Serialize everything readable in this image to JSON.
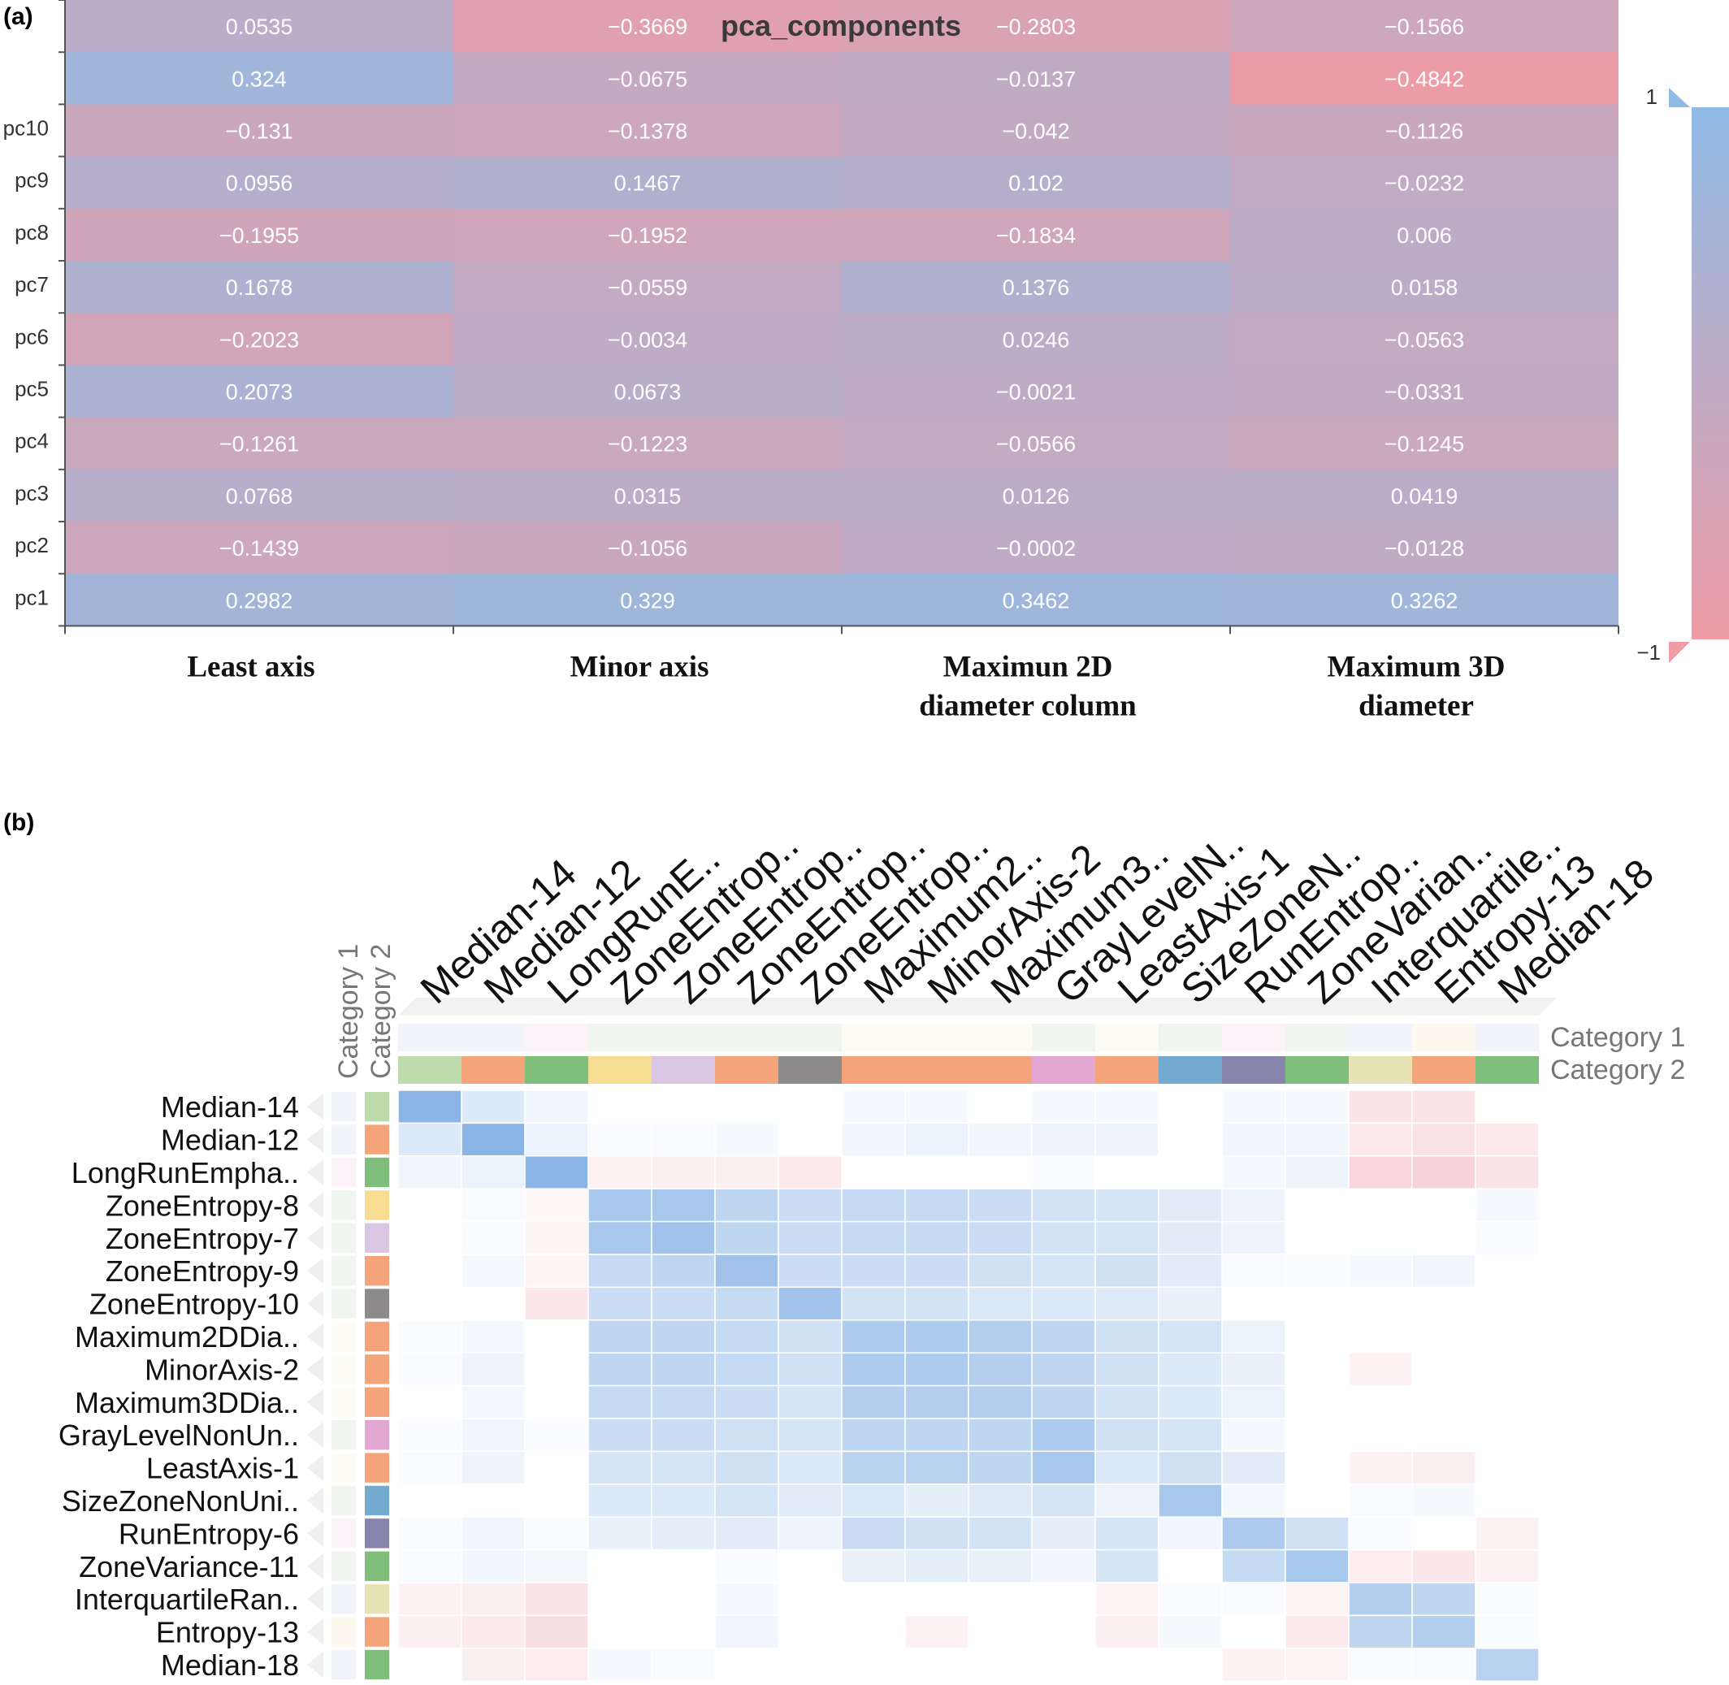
{
  "panel_a_label": "(a)",
  "panel_b_label": "(b)",
  "chart_data": [
    {
      "type": "heatmap",
      "title": "pca_components",
      "columns": [
        "Least axis",
        "Minor axis",
        "Maximun 2D diameter column",
        "Maximum 3D diameter"
      ],
      "columns_display": [
        [
          "Least axis"
        ],
        [
          "Minor axis"
        ],
        [
          "Maximun 2D",
          "diameter column"
        ],
        [
          "Maximum 3D",
          "diameter"
        ]
      ],
      "rows": [
        "",
        "",
        "pc10",
        "pc9",
        "pc8",
        "pc7",
        "pc6",
        "pc5",
        "pc4",
        "pc3",
        "pc2",
        "pc1"
      ],
      "values": [
        [
          0.0535,
          -0.3669,
          -0.2803,
          -0.1566
        ],
        [
          0.324,
          -0.0675,
          -0.0137,
          -0.4842
        ],
        [
          -0.131,
          -0.1378,
          -0.042,
          -0.1126
        ],
        [
          0.0956,
          0.1467,
          0.102,
          -0.0232
        ],
        [
          -0.1955,
          -0.1952,
          -0.1834,
          0.006
        ],
        [
          0.1678,
          -0.0559,
          0.1376,
          0.0158
        ],
        [
          -0.2023,
          -0.0034,
          0.0246,
          -0.0563
        ],
        [
          0.2073,
          0.0673,
          -0.0021,
          -0.0331
        ],
        [
          -0.1261,
          -0.1223,
          -0.0566,
          -0.1245
        ],
        [
          0.0768,
          0.0315,
          0.0126,
          0.0419
        ],
        [
          -0.1439,
          -0.1056,
          -0.0002,
          -0.0128
        ],
        [
          0.2982,
          0.329,
          0.3462,
          0.3262
        ]
      ],
      "visual_map": {
        "min": -1,
        "max": 1,
        "min_label": "−1",
        "max_label": "1",
        "low_color": "#ee9ca6",
        "high_color": "#8fbbe6"
      }
    },
    {
      "type": "heatmap",
      "labels": [
        "Median-14",
        "Median-12",
        "LongRunEmpha..",
        "ZoneEntropy-8",
        "ZoneEntropy-7",
        "ZoneEntropy-9",
        "ZoneEntropy-10",
        "Maximum2DDia..",
        "MinorAxis-2",
        "Maximum3DDia..",
        "GrayLevelNonUn..",
        "LeastAxis-1",
        "SizeZoneNonUni..",
        "RunEntropy-6",
        "ZoneVariance-11",
        "InterquartileRan..",
        "Entropy-13",
        "Median-18"
      ],
      "column_labels": [
        "Median-14",
        "Median-12",
        "LongRunE..",
        "ZoneEntrop..",
        "ZoneEntrop..",
        "ZoneEntrop..",
        "ZoneEntrop..",
        "Maximum2..",
        "MinorAxis-2",
        "Maximum3..",
        "GrayLevelN..",
        "LeastAxis-1",
        "SizeZoneN..",
        "RunEntrop..",
        "ZoneVarian..",
        "Interquartile..",
        "Entropy-13",
        "Median-18"
      ],
      "category_labels": [
        "Category 1",
        "Category 2"
      ],
      "category1_colors": [
        "#f1f5fa",
        "#f1f5fa",
        "#fcf2f8",
        "#f0f6ef",
        "#f0f6ef",
        "#f0f6ef",
        "#f0f6ef",
        "#fcfcf2",
        "#fcfcf2",
        "#fcfcf2",
        "#f0f6ef",
        "#fcfcf2",
        "#f0f6ef",
        "#fcf2f8",
        "#f0f6ef",
        "#f1f5fa",
        "#fff8ee",
        "#f1f5fa"
      ],
      "category2_colors": [
        "#bedcab",
        "#f4a47a",
        "#7fbe7b",
        "#f7dd92",
        "#d9c6e2",
        "#f4a47a",
        "#8c8a8b",
        "#f4a47a",
        "#f4a47a",
        "#f4a47a",
        "#e2a6d2",
        "#f4a47a",
        "#74a9d0",
        "#8684ad",
        "#7fbe7b",
        "#e6e4b5",
        "#f4a47a",
        "#7fbe7b"
      ],
      "values": [
        [
          1.0,
          0.3,
          0.12,
          0,
          0,
          0,
          0,
          0.08,
          0.08,
          0,
          0.08,
          0.08,
          0,
          0.08,
          0.08,
          -0.2,
          -0.2,
          0
        ],
        [
          0.3,
          1.0,
          0.18,
          0.05,
          0.05,
          0.08,
          0,
          0.12,
          0.18,
          0.12,
          0.16,
          0.16,
          0,
          0.12,
          0.12,
          -0.16,
          -0.22,
          -0.16
        ],
        [
          0.12,
          0.18,
          1.0,
          -0.1,
          -0.12,
          -0.12,
          -0.16,
          0,
          0,
          0,
          0.05,
          0,
          0,
          0.08,
          0.16,
          -0.3,
          -0.32,
          -0.2
        ],
        [
          0,
          0.05,
          -0.05,
          0.75,
          0.75,
          0.55,
          0.45,
          0.5,
          0.5,
          0.45,
          0.38,
          0.35,
          0.25,
          0.15,
          0,
          0,
          0,
          0.08
        ],
        [
          0,
          0.05,
          -0.08,
          0.75,
          0.8,
          0.55,
          0.45,
          0.5,
          0.5,
          0.45,
          0.38,
          0.35,
          0.25,
          0.15,
          0,
          0,
          0,
          0.05
        ],
        [
          0,
          0.1,
          -0.08,
          0.5,
          0.55,
          0.8,
          0.45,
          0.45,
          0.45,
          0.4,
          0.35,
          0.4,
          0.25,
          0.05,
          0.05,
          0.08,
          0.12,
          0
        ],
        [
          0,
          0,
          -0.18,
          0.45,
          0.45,
          0.5,
          0.8,
          0.38,
          0.38,
          0.32,
          0.3,
          0.28,
          0.2,
          0,
          0,
          0,
          0,
          0
        ],
        [
          0.05,
          0.1,
          0,
          0.55,
          0.55,
          0.5,
          0.4,
          0.7,
          0.7,
          0.65,
          0.55,
          0.4,
          0.35,
          0.18,
          0,
          0,
          0,
          0
        ],
        [
          0.05,
          0.15,
          0,
          0.55,
          0.55,
          0.5,
          0.4,
          0.7,
          0.7,
          0.65,
          0.55,
          0.4,
          0.3,
          0.2,
          0,
          -0.1,
          0,
          0
        ],
        [
          0,
          0.1,
          0,
          0.5,
          0.5,
          0.45,
          0.35,
          0.65,
          0.65,
          0.65,
          0.55,
          0.38,
          0.3,
          0.18,
          0,
          0,
          0,
          0
        ],
        [
          0.05,
          0.12,
          0.05,
          0.45,
          0.45,
          0.4,
          0.35,
          0.55,
          0.55,
          0.55,
          0.7,
          0.4,
          0.35,
          0.1,
          0,
          0,
          0,
          0
        ],
        [
          0.05,
          0.15,
          0,
          0.35,
          0.35,
          0.4,
          0.3,
          0.6,
          0.6,
          0.55,
          0.75,
          0.3,
          0.4,
          0.25,
          0,
          -0.1,
          -0.12,
          0
        ],
        [
          0,
          0,
          0,
          0.3,
          0.3,
          0.35,
          0.25,
          0.3,
          0.22,
          0.28,
          0.35,
          0.16,
          0.75,
          0.1,
          0,
          0.05,
          0.08,
          0
        ],
        [
          0.05,
          0.12,
          0.05,
          0.2,
          0.22,
          0.25,
          0.15,
          0.45,
          0.4,
          0.38,
          0.22,
          0.35,
          0.12,
          0.7,
          0.4,
          0.05,
          0,
          -0.1
        ],
        [
          0.05,
          0.12,
          0.1,
          0,
          0,
          0.05,
          0,
          0.2,
          0.22,
          0.2,
          0.12,
          0.35,
          0,
          0.5,
          0.75,
          -0.14,
          -0.18,
          -0.1
        ],
        [
          -0.1,
          -0.12,
          -0.2,
          0,
          0,
          0.08,
          0,
          0,
          0,
          0,
          0,
          -0.08,
          0.05,
          0.05,
          -0.08,
          0.65,
          0.55,
          0.05
        ],
        [
          -0.12,
          -0.16,
          -0.24,
          0,
          0,
          0.12,
          0,
          0,
          -0.1,
          0,
          0,
          -0.12,
          0.08,
          0,
          -0.16,
          0.55,
          0.65,
          0.05
        ],
        [
          0,
          -0.12,
          -0.14,
          0.08,
          0.05,
          0,
          0,
          0,
          0,
          0,
          0,
          0,
          0,
          -0.1,
          -0.08,
          0.05,
          0.05,
          0.6
        ]
      ]
    }
  ]
}
